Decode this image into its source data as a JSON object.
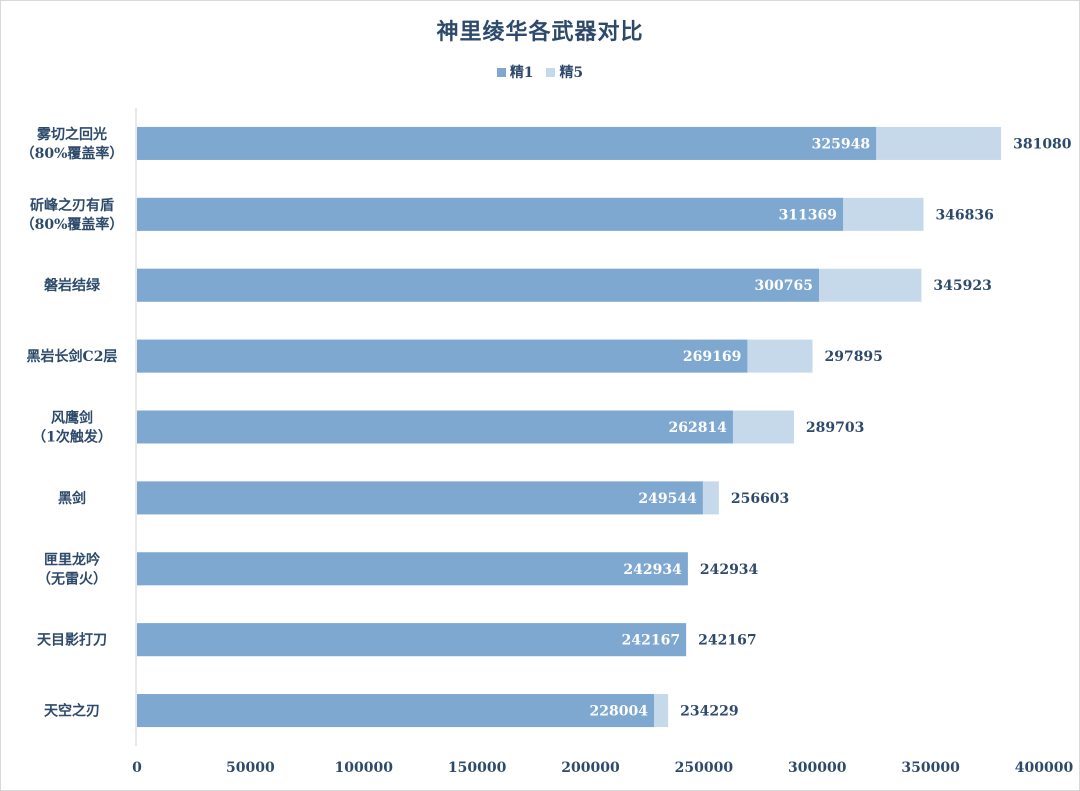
{
  "chart_data": {
    "type": "bar",
    "orientation": "horizontal",
    "stacked": false,
    "overlapping": true,
    "title": "神里绫华各武器对比",
    "categories": [
      [
        "雾切之回光",
        "（80%覆盖率）"
      ],
      [
        "斫峰之刃有盾",
        "（80%覆盖率）"
      ],
      [
        "磐岩结绿"
      ],
      [
        "黑岩长剑C2层"
      ],
      [
        "风鹰剑",
        "（1次触发）"
      ],
      [
        "黑剑"
      ],
      [
        "匣里龙吟",
        "（无雷火）"
      ],
      [
        "天目影打刀"
      ],
      [
        "天空之刃"
      ]
    ],
    "series": [
      {
        "name": "精1",
        "color": "#7fa8d1",
        "values": [
          325948,
          311369,
          300765,
          269169,
          262814,
          249544,
          242934,
          242167,
          228004
        ]
      },
      {
        "name": "精5",
        "color": "#c5d9ea",
        "values": [
          381080,
          346836,
          345923,
          297895,
          289703,
          256603,
          242934,
          242167,
          234229
        ]
      }
    ],
    "xlim": [
      0,
      400000
    ],
    "x_ticks": [
      0,
      50000,
      100000,
      150000,
      200000,
      250000,
      300000,
      350000,
      400000
    ],
    "legend_position": "top-center",
    "grid": false,
    "data_labels": true
  }
}
